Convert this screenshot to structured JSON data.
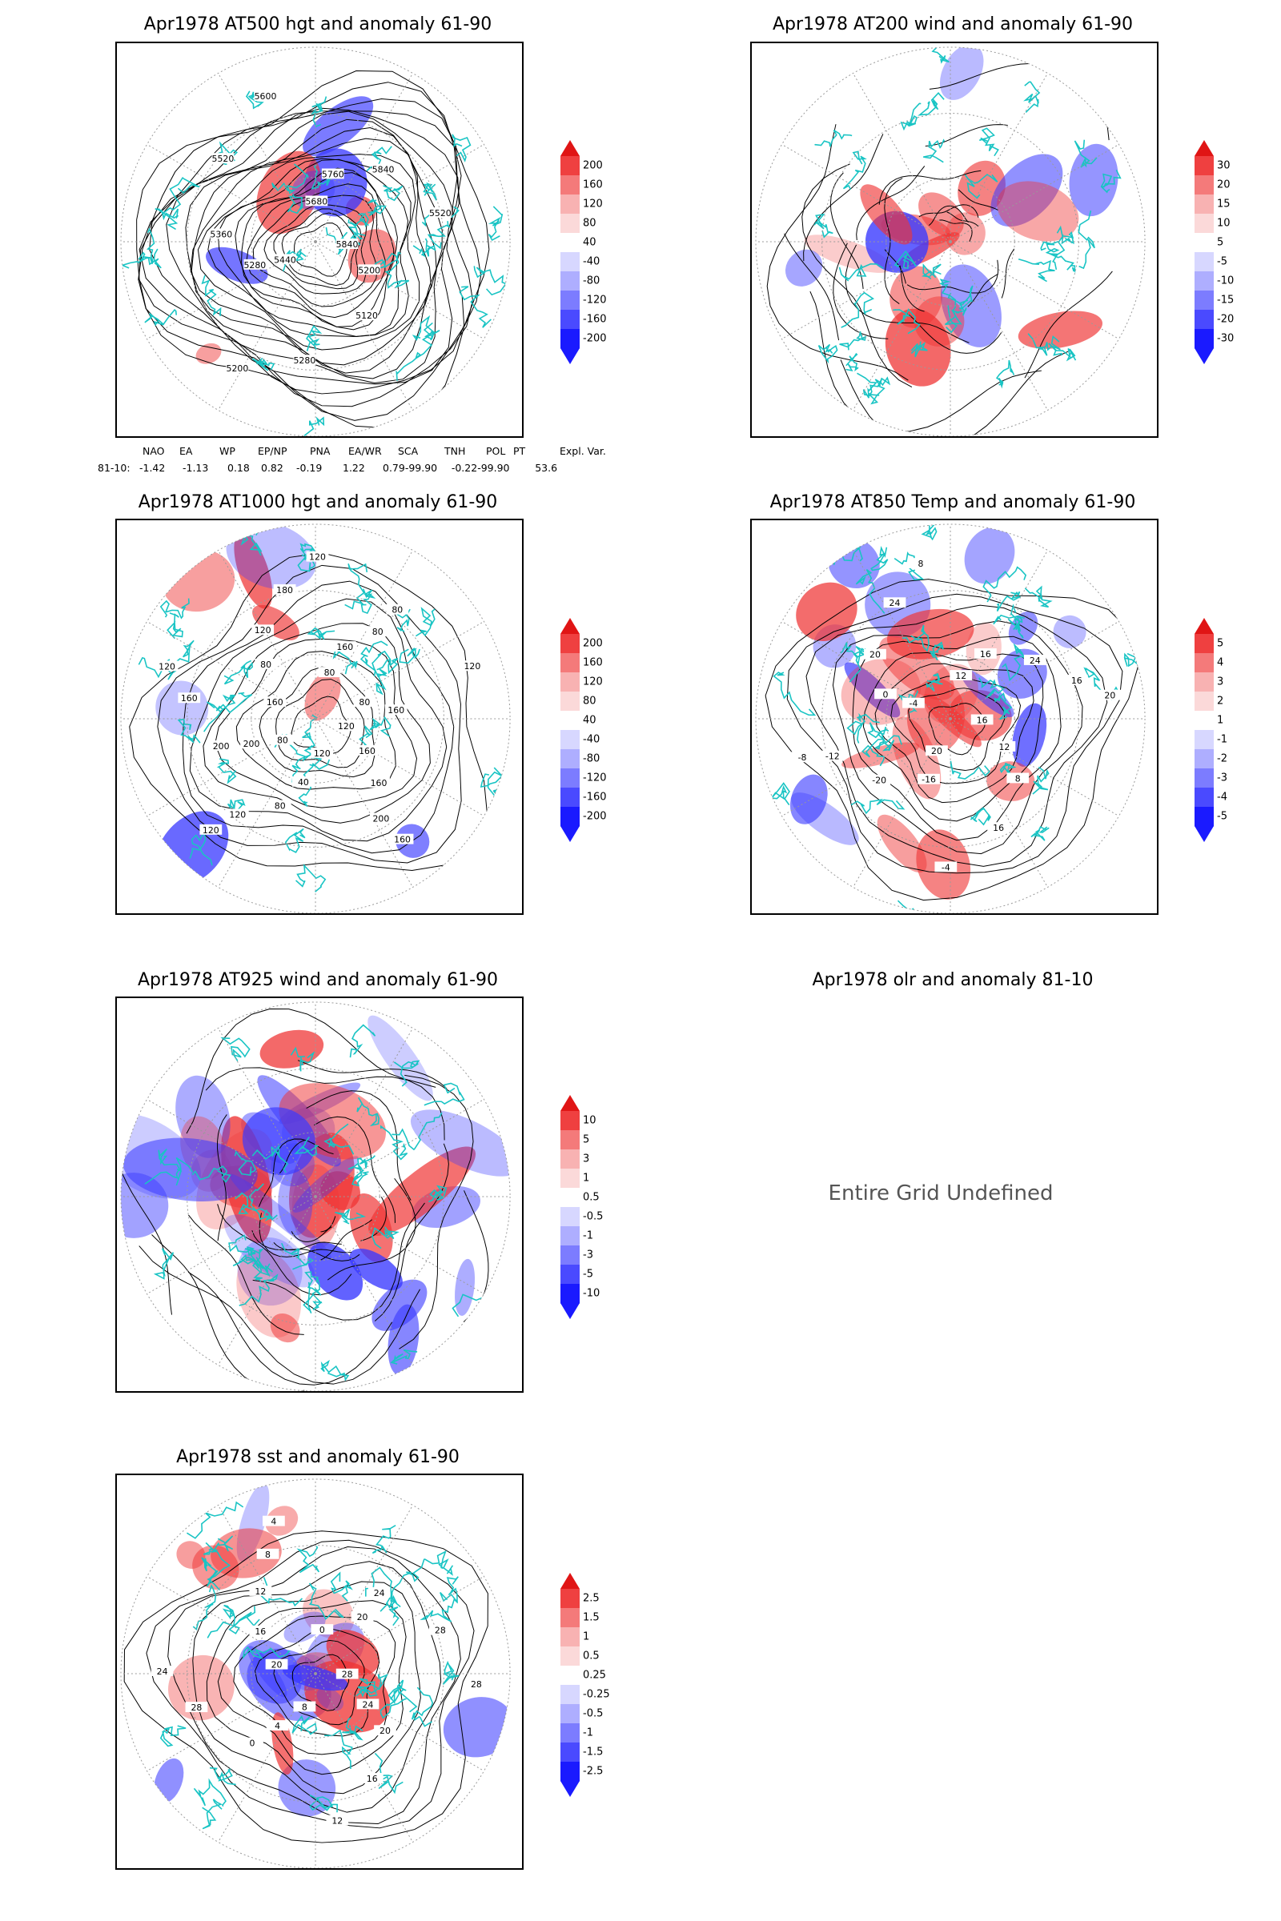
{
  "colors": {
    "positive": "#ef3535",
    "negative": "#3a3aff",
    "coast": "#19c4c4",
    "contour": "#000000",
    "grid": "#9a9a9a"
  },
  "panels": [
    {
      "id": "p500",
      "title": "Apr1978 AT500 hgt and anomaly 61-90",
      "type": "height",
      "colorbar": [
        "200",
        "160",
        "120",
        "80",
        "40",
        "-40",
        "-80",
        "-120",
        "-160",
        "-200"
      ],
      "contour_labels": [
        "5840",
        "5200",
        "5120",
        "5280",
        "5200",
        "5440",
        "5280",
        "5360",
        "5520",
        "5600",
        "5680",
        "5760",
        "5840",
        "5520"
      ]
    },
    {
      "id": "p200",
      "title": "Apr1978 AT200 wind and anomaly 61-90",
      "type": "wind",
      "colorbar": [
        "30",
        "20",
        "15",
        "10",
        "5",
        "-5",
        "-10",
        "-15",
        "-20",
        "-30"
      ],
      "contour_labels": []
    },
    {
      "id": "p1000",
      "title": "Apr1978 AT1000 hgt and anomaly 61-90",
      "type": "height",
      "colorbar": [
        "200",
        "160",
        "120",
        "80",
        "40",
        "-40",
        "-80",
        "-120",
        "-160",
        "-200"
      ],
      "contour_labels": [
        "120",
        "160",
        "160",
        "200",
        "160",
        "120",
        "40",
        "80",
        "120",
        "120",
        "80",
        "200",
        "200",
        "160",
        "120",
        "160",
        "80",
        "120",
        "180",
        "120",
        "80",
        "160",
        "80",
        "80",
        "120",
        "80",
        "160"
      ]
    },
    {
      "id": "p850",
      "title": "Apr1978 AT850 Temp and anomaly 61-90",
      "type": "temp",
      "colorbar": [
        "5",
        "4",
        "3",
        "2",
        "1",
        "-1",
        "-2",
        "-3",
        "-4",
        "-5"
      ],
      "contour_labels": [
        "16",
        "12",
        "8",
        "16",
        "-4",
        "20",
        "-16",
        "-20",
        "-12",
        "-8",
        "-4",
        "0",
        "20",
        "24",
        "8",
        "12",
        "16",
        "24",
        "16",
        "20"
      ]
    },
    {
      "id": "p925",
      "title": "Apr1978 AT925 wind and anomaly 61-90",
      "type": "wind",
      "colorbar": [
        "10",
        "5",
        "3",
        "1",
        "0.5",
        "-0.5",
        "-1",
        "-3",
        "-5",
        "-10"
      ],
      "contour_labels": []
    },
    {
      "id": "polr",
      "title": "Apr1978 olr and anomaly 81-10",
      "type": "undefined",
      "message": "Entire Grid Undefined"
    },
    {
      "id": "psst",
      "title": "Apr1978 sst and anomaly 61-90",
      "type": "sst",
      "colorbar": [
        "2.5",
        "1.5",
        "1",
        "0.5",
        "0.25",
        "-0.25",
        "-0.5",
        "-1",
        "-1.5",
        "-2.5"
      ],
      "contour_labels": [
        "28",
        "24",
        "20",
        "16",
        "12",
        "8",
        "4",
        "0",
        "28",
        "24",
        "20",
        "16",
        "12",
        "8",
        "4",
        "0",
        "20",
        "24",
        "28",
        "28"
      ]
    }
  ],
  "indices": {
    "headers": [
      "NAO",
      "EA",
      "WP",
      "EP/NP",
      "PNA",
      "EA/WR",
      "SCA",
      "TNH",
      "POL",
      "PT",
      "Expl. Var."
    ],
    "row_label": "81-10:",
    "values": [
      "-1.42",
      "-1.13",
      "0.18",
      "0.82",
      "-0.19",
      "1.22",
      "0.79",
      "-99.90",
      "-0.22",
      "-99.90",
      "53.6"
    ]
  }
}
